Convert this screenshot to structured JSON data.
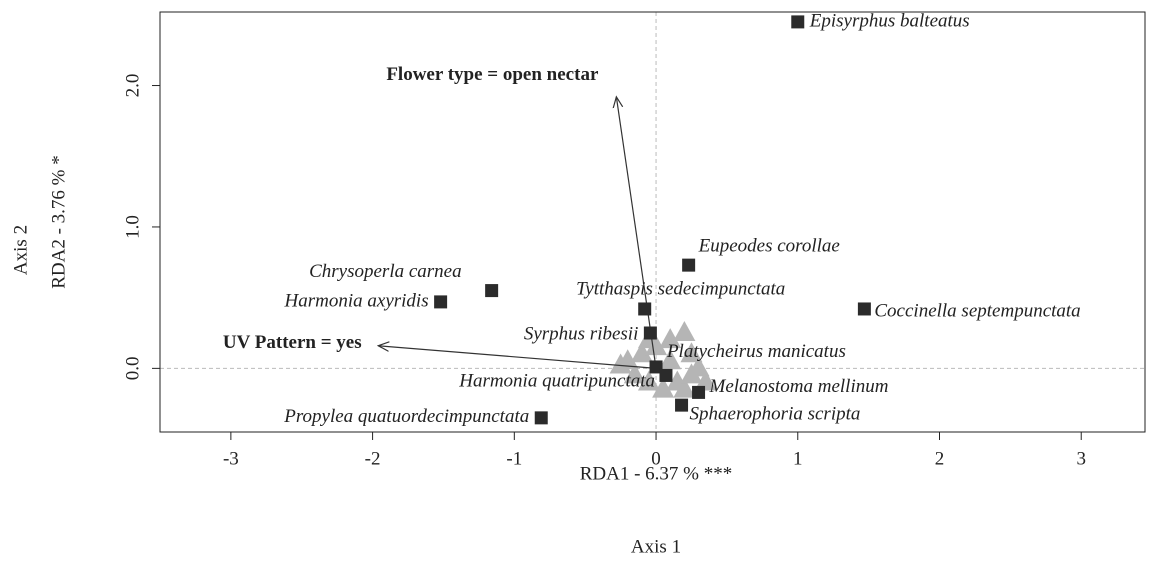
{
  "chart_data": {
    "type": "scatter",
    "x_label": "RDA1 - 6.37 % ***",
    "x_title": "Axis 1",
    "y_label": "RDA2 - 3.76 % *",
    "y_title": "Axis 2",
    "xlim": [
      -3.5,
      3.45
    ],
    "ylim": [
      -0.45,
      2.52
    ],
    "xticks": [
      -3,
      -2,
      -1,
      0,
      1,
      2,
      3
    ],
    "yticks": [
      {
        "value": 0,
        "label": "0.0"
      },
      {
        "value": 1,
        "label": "1.0"
      },
      {
        "value": 2,
        "label": "2.0"
      }
    ],
    "series": [
      {
        "marker": "square",
        "color": "#2b2b2b",
        "labels": [
          "Episyrphus balteatus",
          "Eupeodes corollae",
          "Chrysoperla carnea",
          "Harmonia axyridis",
          "Tytthaspis sedecimpunctata",
          "Coccinella septempunctata",
          "Syrphus ribesii",
          "Harmonia quatripunctata",
          "Platycheirus manicatus",
          "Melanostoma mellinum",
          "Sphaerophoria scripta",
          "Propylea quatuordecimpunctata"
        ],
        "x": [
          1.0,
          0.23,
          -1.16,
          -1.52,
          -0.08,
          1.47,
          -0.04,
          0.0,
          0.07,
          0.3,
          0.18,
          -0.81
        ],
        "y": [
          2.45,
          0.73,
          0.55,
          0.47,
          0.42,
          0.42,
          0.25,
          0.01,
          -0.05,
          -0.17,
          -0.26,
          -0.35
        ]
      },
      {
        "marker": "triangle",
        "color": "#b5b5b5",
        "x": [
          -0.2,
          -0.1,
          -0.05,
          0.0,
          0.1,
          0.2,
          0.25,
          0.3,
          0.15,
          0.05,
          -0.15,
          0.2,
          0.1,
          -0.05,
          0.25,
          0.35,
          -0.25
        ],
        "y": [
          0.05,
          0.1,
          0.2,
          0.15,
          0.05,
          0.25,
          0.1,
          0.0,
          -0.1,
          -0.15,
          -0.05,
          -0.15,
          0.2,
          -0.1,
          -0.05,
          -0.1,
          0.02
        ]
      }
    ],
    "arrows": [
      {
        "label": "Flower type = open nectar",
        "x": -0.28,
        "y": 1.92
      },
      {
        "label": "UV Pattern = yes",
        "x": -1.96,
        "y": 0.16
      }
    ]
  }
}
